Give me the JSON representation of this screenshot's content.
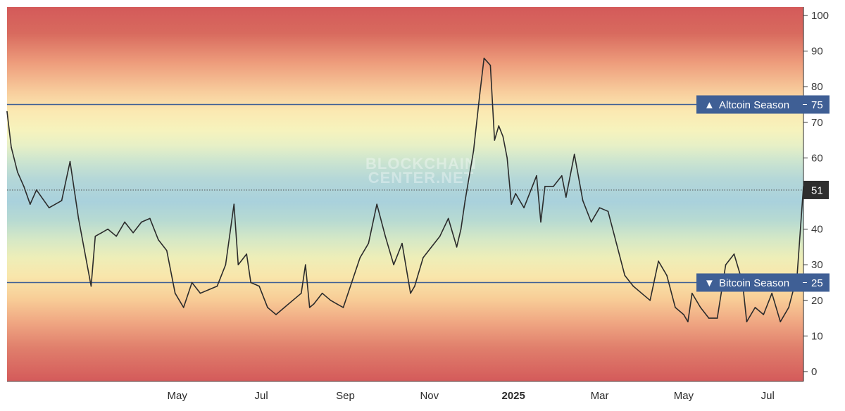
{
  "chart_data": {
    "type": "line",
    "title": "",
    "xlabel": "",
    "ylabel": "",
    "ylim": [
      0,
      100
    ],
    "y_ticks": [
      0,
      10,
      20,
      30,
      40,
      50,
      60,
      70,
      80,
      90,
      100
    ],
    "x_ticks": [
      "May",
      "Jul",
      "Sep",
      "Nov",
      "2025",
      "Mar",
      "May",
      "Jul"
    ],
    "x_tick_positions": [
      4.05,
      6.05,
      8.05,
      10.05,
      12.05,
      14.1,
      16.1,
      18.1
    ],
    "watermark": [
      "BLOCKCHAIN",
      "CENTER.NET"
    ],
    "reference_lines": [
      {
        "label": "Altcoin Season",
        "value": 75,
        "marker": "▲"
      },
      {
        "label": "Bitcoin Season",
        "value": 25,
        "marker": "▼"
      }
    ],
    "current_value": 51,
    "background": "red-yellow-green-blue-green-yellow-red gradient bands",
    "grid": false,
    "line_color": "#2b2b2b",
    "label_color": "#3f5f95",
    "series": [
      {
        "name": "",
        "x": [
          0.0,
          0.1,
          0.25,
          0.4,
          0.55,
          0.7,
          1.0,
          1.3,
          1.5,
          1.7,
          2.0,
          2.1,
          2.25,
          2.4,
          2.6,
          2.8,
          3.0,
          3.2,
          3.4,
          3.6,
          3.8,
          4.0,
          4.2,
          4.4,
          4.6,
          4.8,
          5.0,
          5.2,
          5.4,
          5.5,
          5.7,
          5.8,
          6.0,
          6.2,
          6.4,
          6.6,
          6.8,
          7.0,
          7.1,
          7.2,
          7.3,
          7.5,
          7.7,
          7.85,
          8.0,
          8.2,
          8.4,
          8.6,
          8.8,
          9.0,
          9.2,
          9.4,
          9.6,
          9.7,
          9.9,
          10.1,
          10.3,
          10.5,
          10.7,
          10.8,
          10.9,
          11.1,
          11.25,
          11.35,
          11.5,
          11.6,
          11.7,
          11.8,
          11.9,
          12.0,
          12.1,
          12.2,
          12.3,
          12.5,
          12.6,
          12.7,
          12.8,
          13.0,
          13.2,
          13.3,
          13.5,
          13.7,
          13.9,
          14.1,
          14.3,
          14.5,
          14.7,
          14.9,
          15.1,
          15.3,
          15.5,
          15.7,
          15.9,
          16.1,
          16.2,
          16.3,
          16.5,
          16.7,
          16.9,
          17.1,
          17.3,
          17.5,
          17.6,
          17.8,
          18.0,
          18.2,
          18.4,
          18.6,
          18.8,
          18.95
        ],
        "values": [
          73,
          63,
          56,
          52,
          47,
          51,
          46,
          48,
          59,
          43,
          24,
          38,
          39,
          40,
          38,
          42,
          39,
          42,
          43,
          37,
          34,
          22,
          18,
          25,
          22,
          23,
          24,
          30,
          47,
          30,
          33,
          25,
          24,
          18,
          16,
          18,
          20,
          22,
          30,
          18,
          19,
          22,
          20,
          19,
          18,
          25,
          32,
          36,
          47,
          38,
          30,
          36,
          22,
          24,
          32,
          35,
          38,
          43,
          35,
          40,
          48,
          62,
          78,
          88,
          86,
          65,
          69,
          66,
          60,
          47,
          50,
          48,
          46,
          52,
          55,
          42,
          52,
          52,
          55,
          49,
          61,
          48,
          42,
          46,
          45,
          36,
          27,
          24,
          22,
          20,
          31,
          27,
          18,
          16,
          14,
          22,
          18,
          15,
          15,
          30,
          33,
          25,
          14,
          18,
          16,
          22,
          14,
          18,
          27,
          52
        ]
      }
    ]
  }
}
